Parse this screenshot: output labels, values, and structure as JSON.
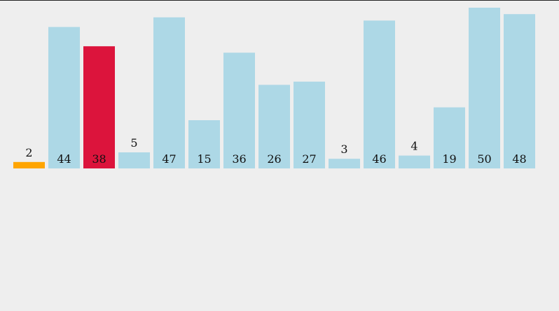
{
  "chart_data": {
    "type": "bar",
    "values": [
      2,
      44,
      38,
      5,
      47,
      15,
      36,
      26,
      27,
      3,
      46,
      4,
      19,
      50,
      48
    ],
    "colors": [
      "#ffa500",
      "#add8e6",
      "#dc143c",
      "#add8e6",
      "#add8e6",
      "#add8e6",
      "#add8e6",
      "#add8e6",
      "#add8e6",
      "#add8e6",
      "#add8e6",
      "#add8e6",
      "#add8e6",
      "#add8e6",
      "#add8e6"
    ]
  }
}
